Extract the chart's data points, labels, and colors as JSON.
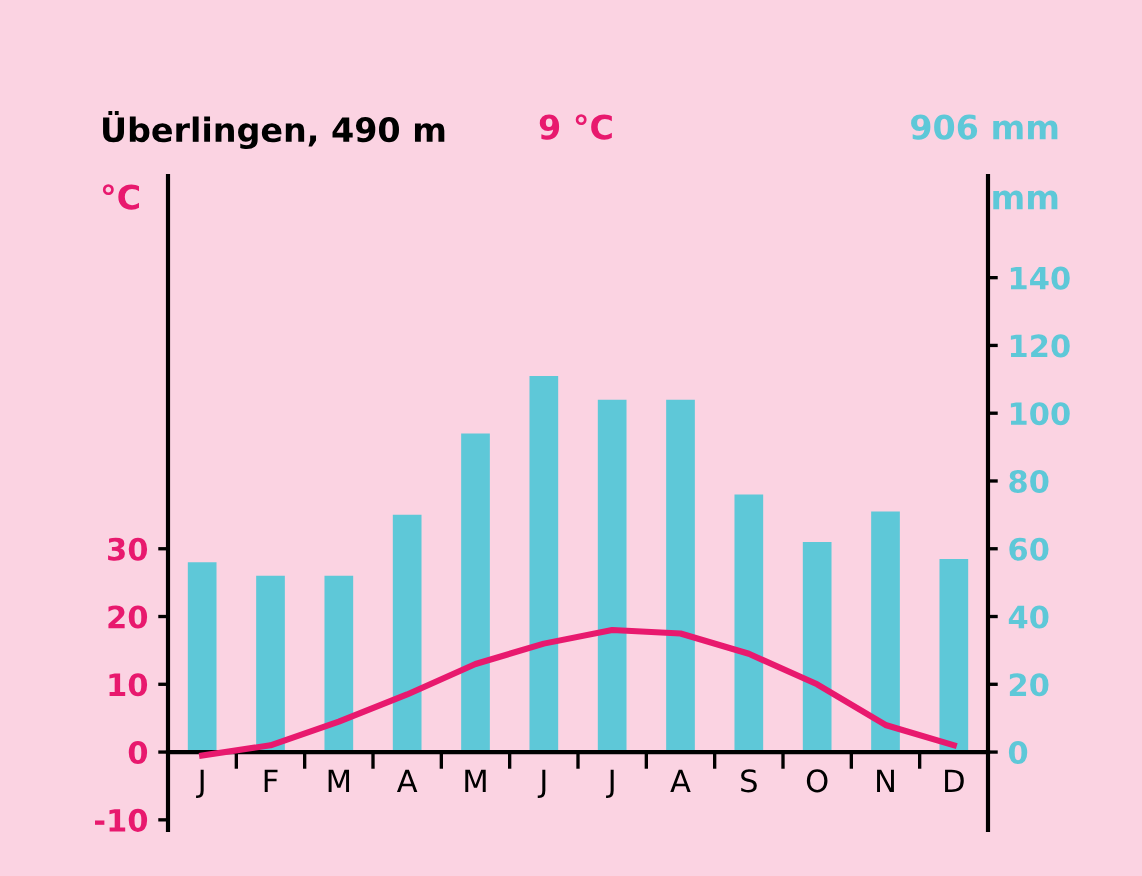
{
  "chart_data": {
    "type": "bar",
    "title": "Überlingen, 490 m",
    "ylabel": "°C",
    "y2label": "mm",
    "annotations": [
      "9 °C",
      "906 mm"
    ],
    "categories": [
      "J",
      "F",
      "M",
      "A",
      "M",
      "J",
      "J",
      "A",
      "S",
      "O",
      "N",
      "D"
    ],
    "series": [
      {
        "axis": "y2",
        "color": "#5ec8d8",
        "values": [
          56,
          52,
          52,
          70,
          94,
          111,
          104,
          104,
          76,
          62,
          71,
          57
        ]
      },
      {
        "type": "line",
        "axis": "y",
        "color": "#e8196e",
        "values": [
          -0.5,
          1,
          4.5,
          8.5,
          13,
          16,
          18,
          17.5,
          14.5,
          10,
          4,
          1
        ]
      }
    ],
    "ylim": [
      -11.5,
      85
    ],
    "yticks": [
      -10,
      0,
      10,
      20,
      30
    ],
    "y2lim": [
      -23,
      170
    ],
    "y2ticks": [
      0,
      20,
      40,
      60,
      80,
      100,
      120,
      140
    ],
    "grid": false,
    "legend": false
  }
}
